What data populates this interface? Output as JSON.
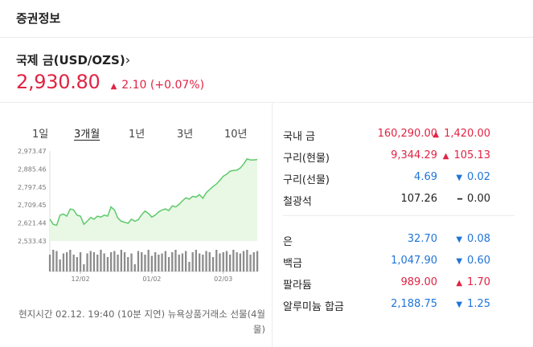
{
  "header": {
    "title": "증권정보"
  },
  "asset": {
    "name": "국제 금(USD/OZS)",
    "chevron": "›",
    "price": "2,930.80",
    "change_arrow": "▲",
    "change": "2.10 (+0.07%)",
    "change_color": "#e12343"
  },
  "tabs": [
    {
      "label": "1일",
      "active": false
    },
    {
      "label": "3개월",
      "active": true
    },
    {
      "label": "1년",
      "active": false
    },
    {
      "label": "3년",
      "active": false
    },
    {
      "label": "10년",
      "active": false
    }
  ],
  "chart_data": {
    "type": "area",
    "y_ticks": [
      "2,973.47",
      "2,885.46",
      "2,797.45",
      "2,709.45",
      "2,621.44",
      "2,533.43"
    ],
    "ylim": [
      2533.43,
      2973.47
    ],
    "x_ticks": [
      "12/02",
      "01/02",
      "02/03"
    ],
    "x_tick_index": [
      9,
      30,
      51
    ],
    "values": [
      2640,
      2615,
      2610,
      2660,
      2665,
      2655,
      2690,
      2685,
      2660,
      2655,
      2615,
      2630,
      2648,
      2640,
      2655,
      2650,
      2660,
      2655,
      2700,
      2685,
      2645,
      2630,
      2625,
      2620,
      2640,
      2630,
      2638,
      2662,
      2680,
      2668,
      2650,
      2660,
      2675,
      2685,
      2690,
      2682,
      2705,
      2700,
      2712,
      2730,
      2745,
      2738,
      2752,
      2748,
      2760,
      2742,
      2770,
      2785,
      2800,
      2812,
      2830,
      2850,
      2860,
      2875,
      2878,
      2880,
      2890,
      2910,
      2935,
      2930,
      2930,
      2932
    ],
    "volume": [
      0.7,
      0.9,
      0.85,
      0.5,
      0.75,
      0.8,
      0.9,
      0.7,
      0.6,
      0.8,
      0.3,
      0.75,
      0.85,
      0.8,
      0.7,
      0.9,
      0.75,
      0.6,
      0.8,
      0.85,
      0.7,
      0.9,
      0.8,
      0.6,
      0.75,
      0.3,
      0.85,
      0.8,
      0.7,
      0.9,
      0.65,
      0.8,
      0.7,
      0.75,
      0.85,
      0.6,
      0.8,
      0.9,
      0.7,
      0.75,
      0.85,
      0.4,
      0.8,
      0.9,
      0.75,
      0.7,
      0.85,
      0.8,
      0.6,
      0.9,
      0.75,
      0.8,
      0.85,
      0.7,
      0.9,
      0.8,
      0.75,
      0.85,
      0.9,
      0.7,
      0.8,
      0.85
    ],
    "line_color": "#5ec96a",
    "fill_color": "#e8f8e5",
    "volume_color": "#8c8c8c",
    "grid": false
  },
  "note": "현지시간 02.12. 19:40 (10분 지연) 뉴욕상품거래소 선물(4월물)",
  "commodities_group1": [
    {
      "name": "국내 금",
      "value": "160,290.00",
      "arrow": "▲",
      "change": "1,420.00",
      "direction": "up"
    },
    {
      "name": "구리(현물)",
      "value": "9,344.29",
      "arrow": "▲",
      "change": "105.13",
      "direction": "up"
    },
    {
      "name": "구리(선물)",
      "value": "4.69",
      "arrow": "▼",
      "change": "0.02",
      "direction": "down"
    },
    {
      "name": "철광석",
      "value": "107.26",
      "arrow": "━",
      "change": "0.00",
      "direction": "flat"
    }
  ],
  "commodities_group2": [
    {
      "name": "은",
      "value": "32.70",
      "arrow": "▼",
      "change": "0.08",
      "direction": "down"
    },
    {
      "name": "백금",
      "value": "1,047.90",
      "arrow": "▼",
      "change": "0.60",
      "direction": "down"
    },
    {
      "name": "팔라듐",
      "value": "989.00",
      "arrow": "▲",
      "change": "1.70",
      "direction": "up"
    },
    {
      "name": "알루미늄 합금",
      "value": "2,188.75",
      "arrow": "▼",
      "change": "1.25",
      "direction": "down"
    }
  ],
  "colors": {
    "up": "#e12343",
    "down": "#1f74d8"
  }
}
